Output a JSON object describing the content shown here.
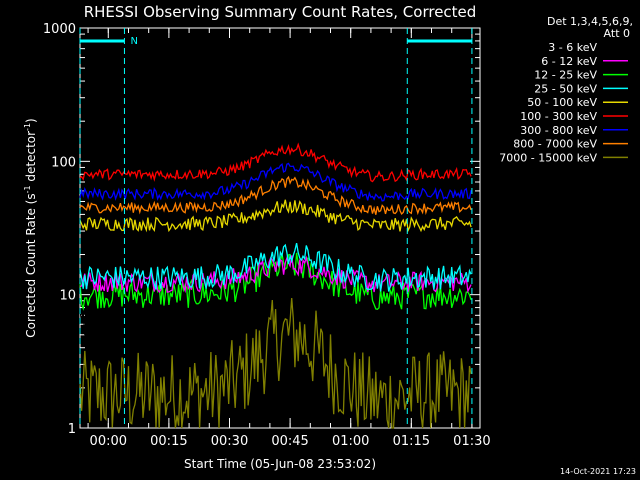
{
  "chart_data": {
    "type": "line",
    "title": "RHESSI Observing Summary Count Rates, Corrected",
    "xlabel": "Start Time (05-Jun-08 23:53:02)",
    "ylabel_parts": {
      "a": "Corrected Count Rate (s",
      "b": "-1",
      "c": " detector",
      "d": "-1",
      "e": ")"
    },
    "y_scale": "log",
    "ylim": [
      1,
      1000
    ],
    "y_ticks": [
      {
        "v": 1,
        "label": "1"
      },
      {
        "v": 10,
        "label": "10"
      },
      {
        "v": 100,
        "label": "100"
      },
      {
        "v": 1000,
        "label": "1000"
      }
    ],
    "x_unit": "minutes_from_start",
    "xlim": [
      0,
      99
    ],
    "x_ticks": [
      {
        "v": 7,
        "label": "00:00"
      },
      {
        "v": 22,
        "label": "00:15"
      },
      {
        "v": 37,
        "label": "00:30"
      },
      {
        "v": 52,
        "label": "00:45"
      },
      {
        "v": 67,
        "label": "01:00"
      },
      {
        "v": 82,
        "label": "01:15"
      },
      {
        "v": 97,
        "label": "01:30"
      }
    ],
    "legend_header": [
      "Det 1,3,4,5,6,9,",
      "Att 0"
    ],
    "series": [
      {
        "name": "3 - 6 keV",
        "color": "#000000",
        "base": 6.0,
        "peak": 2.3,
        "noise": 0.1
      },
      {
        "name": "6 - 12 keV",
        "color": "#ff00ff",
        "base": 12.5,
        "peak": 1.35,
        "noise": 0.06
      },
      {
        "name": "12 - 25 keV",
        "color": "#00ff00",
        "base": 10.0,
        "peak": 1.65,
        "noise": 0.08
      },
      {
        "name": "25 - 50 keV",
        "color": "#00ffff",
        "base": 13.5,
        "peak": 1.5,
        "noise": 0.07
      },
      {
        "name": "50 - 100 keV",
        "color": "#e6d800",
        "base": 34,
        "peak": 1.35,
        "noise": 0.04
      },
      {
        "name": "100 - 300 keV",
        "color": "#ff0000",
        "base": 80,
        "peak": 1.55,
        "noise": 0.03
      },
      {
        "name": "300 - 800 keV",
        "color": "#0000ff",
        "base": 57,
        "peak": 1.6,
        "noise": 0.03
      },
      {
        "name": "800 - 7000 keV",
        "color": "#ff8000",
        "base": 45,
        "peak": 1.55,
        "noise": 0.03
      },
      {
        "name": "7000 - 15000 keV",
        "color": "#808000",
        "base": 1.8,
        "peak": 2.8,
        "noise": 0.25
      }
    ],
    "flag_label": "N",
    "flag_intervals": [
      [
        0,
        11
      ],
      [
        81,
        97
      ]
    ],
    "timestamp": "14-Oct-2021 17:23"
  }
}
